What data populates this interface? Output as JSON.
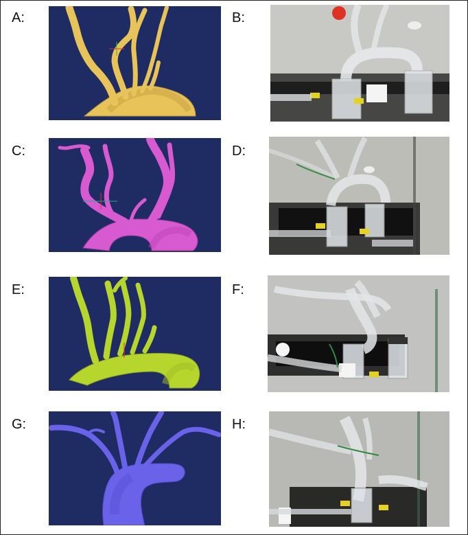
{
  "figure": {
    "panels": [
      {
        "id": "A",
        "label": "A:",
        "kind": "3d-model",
        "vessel_color": "#e7c35a",
        "background": "#1f2c63"
      },
      {
        "id": "B",
        "label": "B:",
        "kind": "photo"
      },
      {
        "id": "C",
        "label": "C:",
        "kind": "3d-model",
        "vessel_color": "#d75ad1",
        "background": "#1f2c63"
      },
      {
        "id": "D",
        "label": "D:",
        "kind": "photo"
      },
      {
        "id": "E",
        "label": "E:",
        "kind": "3d-model",
        "vessel_color": "#b7d62d",
        "background": "#1f2c63"
      },
      {
        "id": "F",
        "label": "F:",
        "kind": "photo"
      },
      {
        "id": "G",
        "label": "G:",
        "kind": "3d-model",
        "vessel_color": "#6a62e8",
        "background": "#1f2c63"
      },
      {
        "id": "H",
        "label": "H:",
        "kind": "photo"
      }
    ]
  }
}
